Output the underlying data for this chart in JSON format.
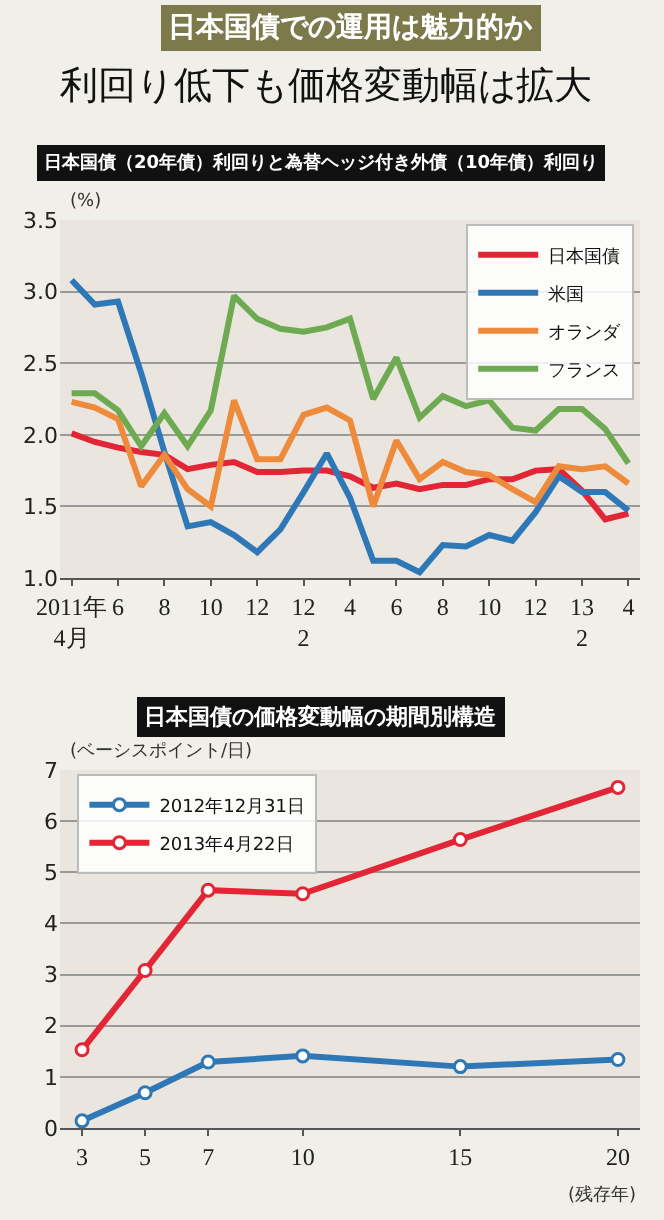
{
  "chart_data": [
    {
      "type": "line",
      "title": "利回り低下も価格変動幅は拡大",
      "subtitle": "日本国債（20年債）利回りと為替ヘッジ付き外債（10年債）利回り",
      "annotations": [
        "日本国債での運用は魅力的か"
      ],
      "ylabel": "(%)",
      "categories": [
        "2011年\n4月",
        null,
        "6",
        null,
        "8",
        null,
        "10",
        null,
        "12",
        null,
        "12\n2",
        null,
        "4",
        null,
        "6",
        null,
        "8",
        null,
        "10",
        null,
        "12",
        null,
        "13\n2",
        null,
        "4"
      ],
      "series": [
        {
          "name": "日本国債",
          "color": "#e32636",
          "values": [
            2.01,
            1.95,
            1.91,
            1.88,
            1.86,
            1.76,
            1.79,
            1.81,
            1.74,
            1.74,
            1.75,
            1.75,
            1.71,
            1.63,
            1.66,
            1.62,
            1.65,
            1.65,
            1.69,
            1.69,
            1.75,
            1.76,
            1.61,
            1.41,
            1.45
          ]
        },
        {
          "name": "米国",
          "color": "#2f78b7",
          "values": [
            3.08,
            2.91,
            2.93,
            2.43,
            1.88,
            1.36,
            1.39,
            1.3,
            1.18,
            1.34,
            1.6,
            1.87,
            1.56,
            1.12,
            1.12,
            1.04,
            1.23,
            1.22,
            1.3,
            1.26,
            1.46,
            1.71,
            1.6,
            1.6,
            1.47
          ]
        },
        {
          "name": "オランダ",
          "color": "#ee8a3c",
          "values": [
            2.23,
            2.19,
            2.11,
            1.64,
            1.86,
            1.62,
            1.5,
            2.24,
            1.83,
            1.83,
            2.14,
            2.19,
            2.1,
            1.5,
            1.96,
            1.69,
            1.81,
            1.74,
            1.72,
            1.62,
            1.53,
            1.78,
            1.76,
            1.78,
            1.66
          ]
        },
        {
          "name": "フランス",
          "color": "#6eaa52",
          "values": [
            2.29,
            2.29,
            2.17,
            1.92,
            2.15,
            1.92,
            2.17,
            2.97,
            2.81,
            2.74,
            2.72,
            2.75,
            2.81,
            2.25,
            2.54,
            2.12,
            2.27,
            2.2,
            2.24,
            2.05,
            2.03,
            2.18,
            2.18,
            2.04,
            1.8
          ]
        }
      ],
      "ylim": [
        1.0,
        3.5
      ],
      "yticks": [
        {
          "value": 1.0,
          "label": "1.0"
        },
        {
          "value": 1.5,
          "label": "1.5"
        },
        {
          "value": 2.0,
          "label": "2.0"
        },
        {
          "value": 2.5,
          "label": "2.5"
        },
        {
          "value": 3.0,
          "label": "3.0"
        },
        {
          "value": 3.5,
          "label": "3.5"
        }
      ],
      "grid": "y",
      "legend": "top right",
      "line_style": "solid"
    },
    {
      "type": "line",
      "title": "日本国債の価格変動幅の期間別構造",
      "xlabel": "(残存年)",
      "ylabel": "(ベーシスポイント/日)",
      "x": [
        3,
        5,
        7,
        10,
        15,
        20
      ],
      "series": [
        {
          "name": "2012年12月31日",
          "color": "#2f78b7",
          "values": [
            0.14,
            0.69,
            1.29,
            1.41,
            1.2,
            1.34
          ]
        },
        {
          "name": "2013年4月22日",
          "color": "#e32636",
          "values": [
            1.53,
            3.08,
            4.65,
            4.58,
            5.64,
            6.66
          ]
        }
      ],
      "xlim": [
        2.3,
        20.7
      ],
      "xticks": [
        3,
        5,
        7,
        10,
        15,
        20
      ],
      "ylim": [
        0,
        7
      ],
      "yticks": [
        0,
        1,
        2,
        3,
        4,
        5,
        6,
        7
      ],
      "grid": "y",
      "legend": "top left",
      "marker": "circle",
      "line_style": "solid"
    }
  ]
}
